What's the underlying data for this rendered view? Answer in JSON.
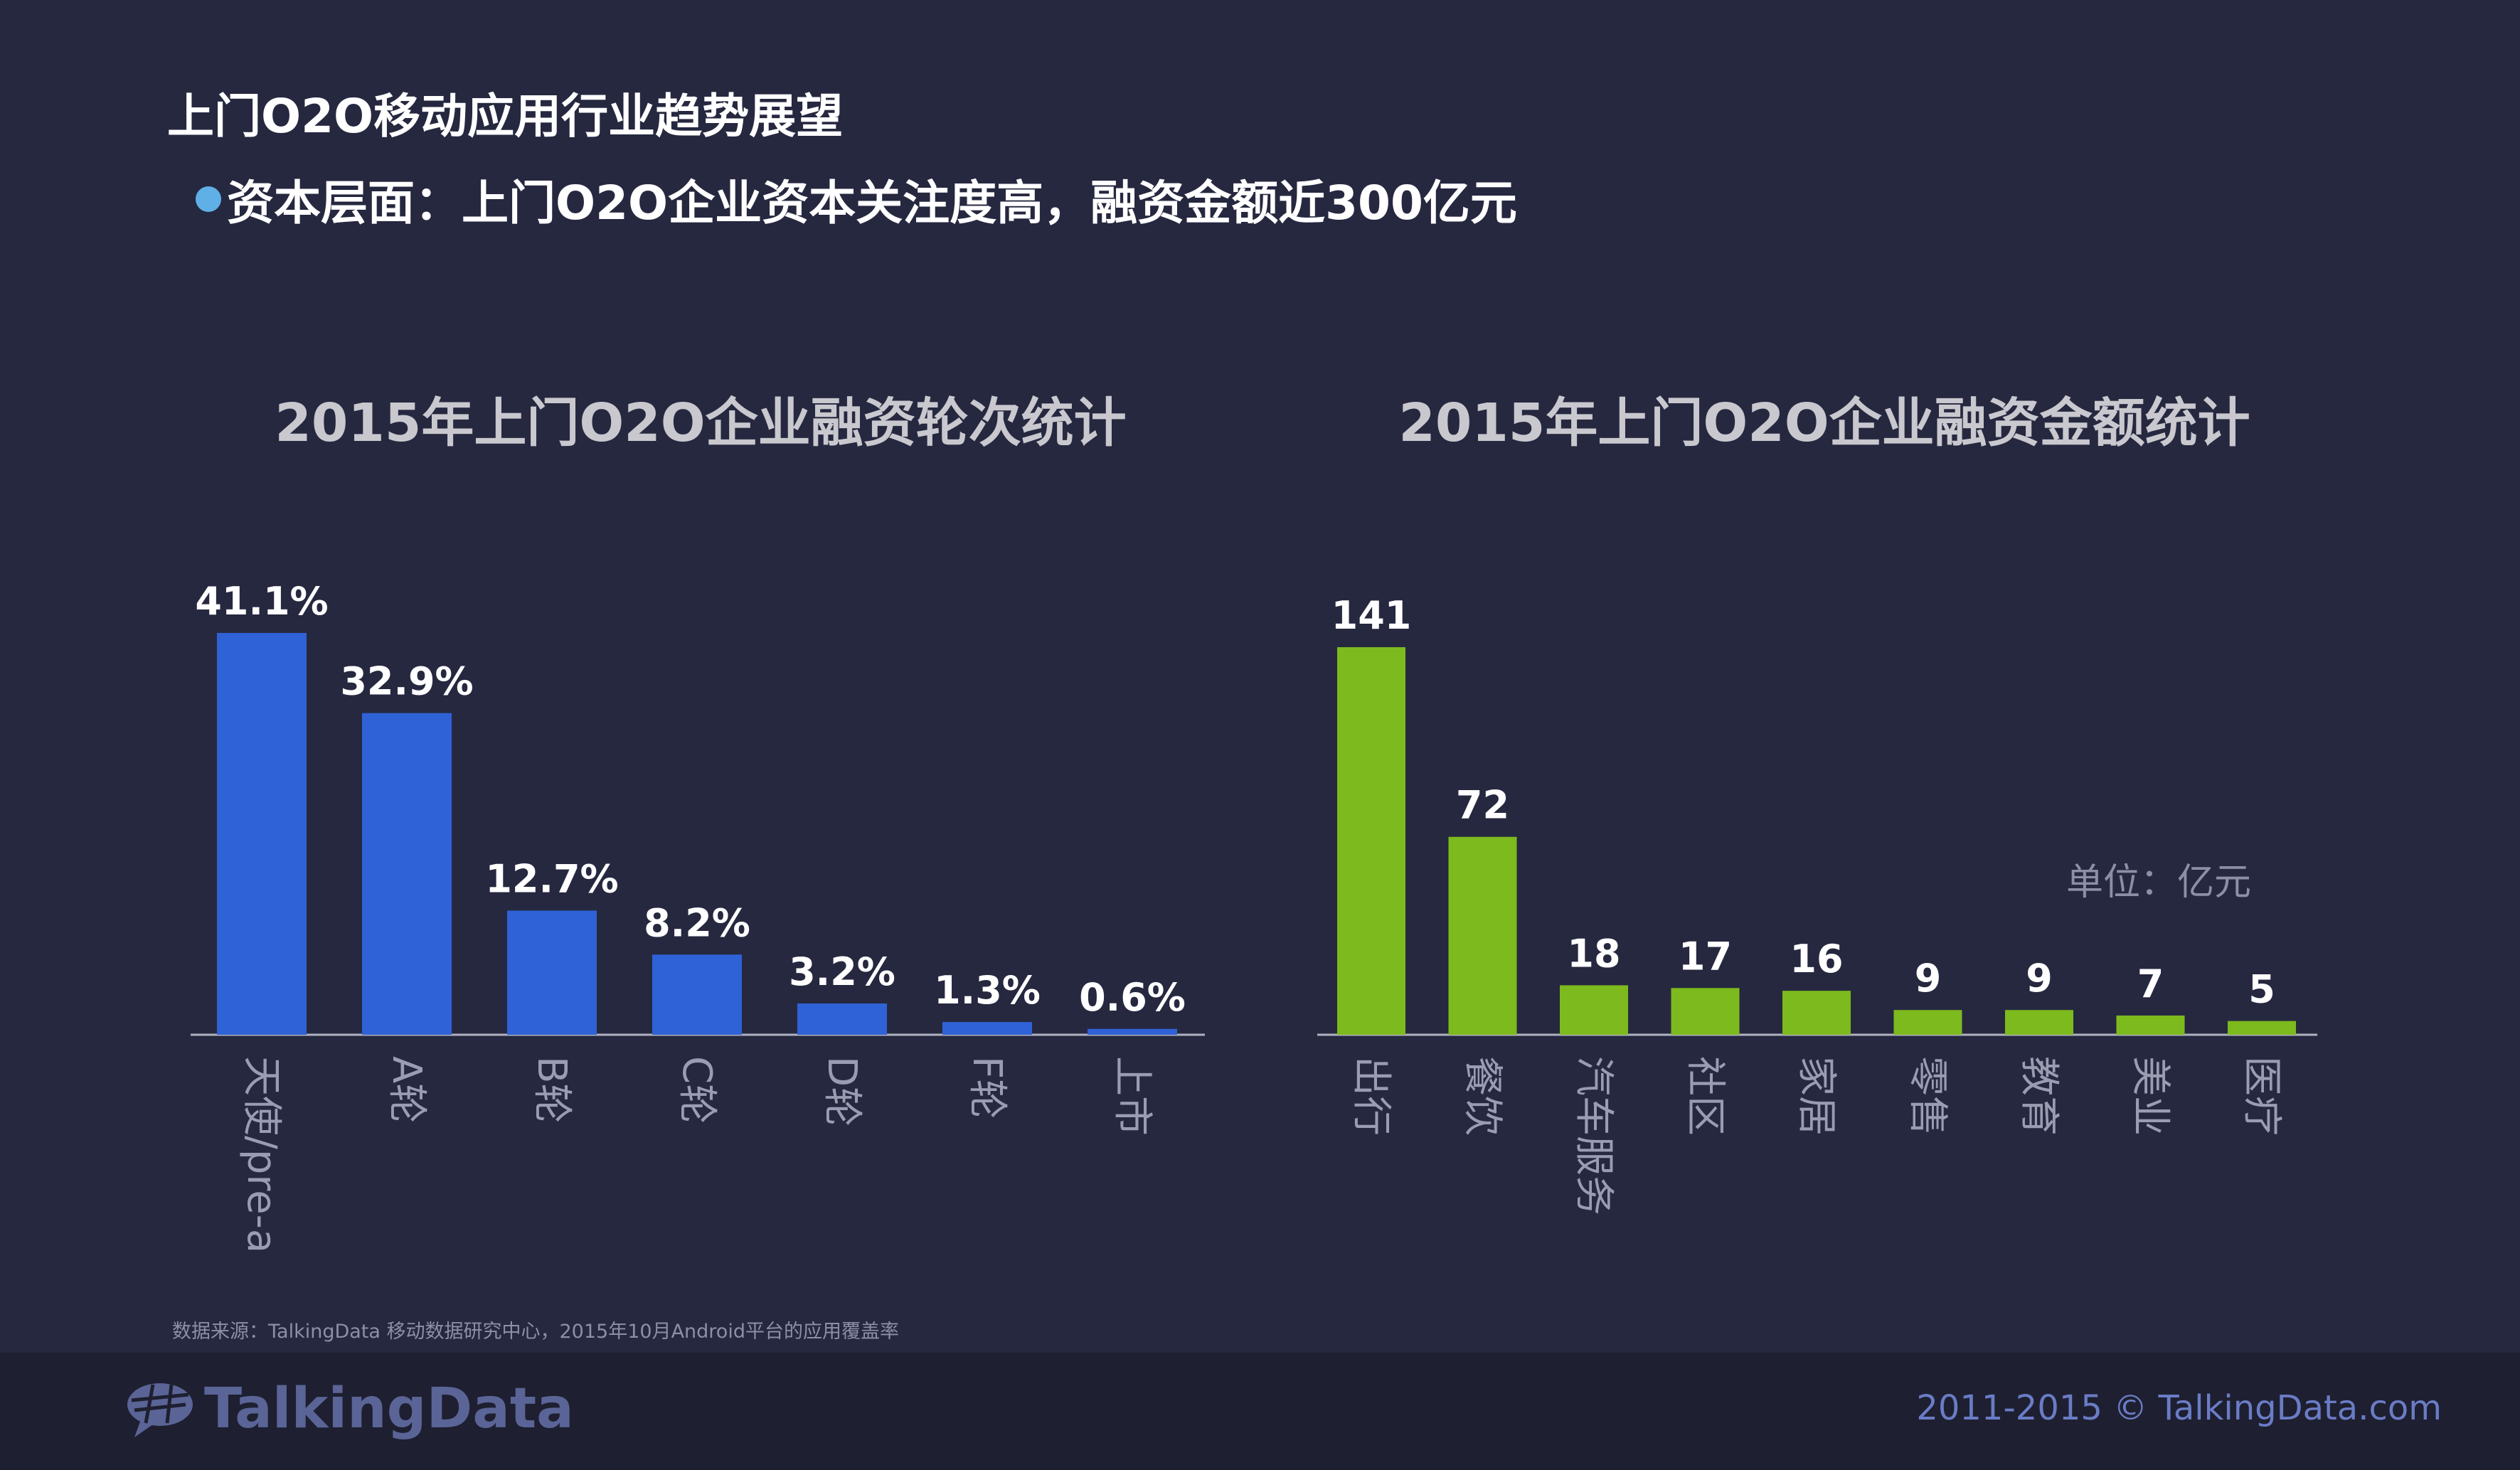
{
  "page": {
    "title": "上门O2O移动应用行业趋势展望",
    "subtitle": "资本层面：上门O2O企业资本关注度高，融资金额近300亿元",
    "unit_label": "单位：亿元",
    "source": "数据来源：TalkingData 移动数据研究中心，2015年10月Android平台的应用覆盖率",
    "logo_text": "TalkingData",
    "copyright": "2011-2015 © TalkingData.com"
  },
  "colors": {
    "background": "#262840",
    "footer": "#1e1f30",
    "bar_left": "#2f62d6",
    "bar_right": "#7dba1e",
    "axis": "#b0b2c0",
    "value_label": "#ffffff",
    "category_label": "#9a9cb2",
    "bullet": "#5fb0e6"
  },
  "chart_data": [
    {
      "type": "bar",
      "title": "2015年上门O2O企业融资轮次统计",
      "categories": [
        "天使/pre-a",
        "A轮",
        "B轮",
        "C轮",
        "D轮",
        "F轮",
        "上市"
      ],
      "values": [
        41.1,
        32.9,
        12.7,
        8.2,
        3.2,
        1.3,
        0.6
      ],
      "value_labels": [
        "41.1%",
        "32.9%",
        "12.7%",
        "8.2%",
        "3.2%",
        "1.3%",
        "0.6%"
      ],
      "xlabel": "",
      "ylabel": "",
      "ylim": [
        0,
        41.1
      ],
      "grid": false
    },
    {
      "type": "bar",
      "title": "2015年上门O2O企业融资金额统计",
      "categories": [
        "出行",
        "餐饮",
        "汽车服务",
        "社区",
        "家居",
        "零售",
        "教育",
        "美业",
        "医疗"
      ],
      "values": [
        141,
        72,
        18,
        17,
        16,
        9,
        9,
        7,
        5
      ],
      "value_labels": [
        "141",
        "72",
        "18",
        "17",
        "16",
        "9",
        "9",
        "7",
        "5"
      ],
      "xlabel": "",
      "ylabel": "",
      "unit": "单位：亿元",
      "ylim": [
        0,
        141
      ],
      "grid": false
    }
  ]
}
